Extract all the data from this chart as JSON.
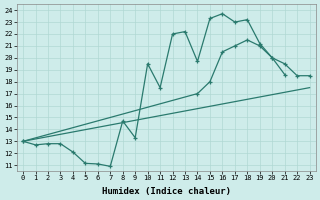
{
  "xlabel": "Humidex (Indice chaleur)",
  "background_color": "#ceecea",
  "grid_color": "#b0d8d4",
  "line_color": "#2a7a6e",
  "xlim": [
    -0.5,
    23.5
  ],
  "ylim": [
    10.5,
    24.5
  ],
  "yticks": [
    11,
    12,
    13,
    14,
    15,
    16,
    17,
    18,
    19,
    20,
    21,
    22,
    23,
    24
  ],
  "xticks": [
    0,
    1,
    2,
    3,
    4,
    5,
    6,
    7,
    8,
    9,
    10,
    11,
    12,
    13,
    14,
    15,
    16,
    17,
    18,
    19,
    20,
    21,
    22,
    23
  ],
  "curve1_x": [
    0,
    1,
    2,
    3,
    4,
    5,
    6,
    7,
    8,
    9,
    10,
    11,
    12,
    13,
    14,
    15,
    16,
    17,
    18,
    19,
    20,
    21
  ],
  "curve1_y": [
    13,
    12.7,
    12.8,
    12.8,
    12.1,
    11.15,
    11.1,
    10.9,
    14.7,
    13.3,
    19.5,
    17.5,
    22.0,
    22.2,
    19.7,
    23.3,
    23.7,
    23.0,
    23.2,
    21.2,
    20.0,
    18.6
  ],
  "curve2_x": [
    0,
    23
  ],
  "curve2_y": [
    13.0,
    17.5
  ],
  "curve3_x": [
    0,
    14,
    15,
    16,
    17,
    18,
    19,
    20,
    21,
    22,
    23
  ],
  "curve3_y": [
    13.0,
    17.0,
    18.0,
    20.5,
    21.0,
    21.5,
    21.0,
    20.0,
    19.5,
    18.5,
    18.5
  ]
}
